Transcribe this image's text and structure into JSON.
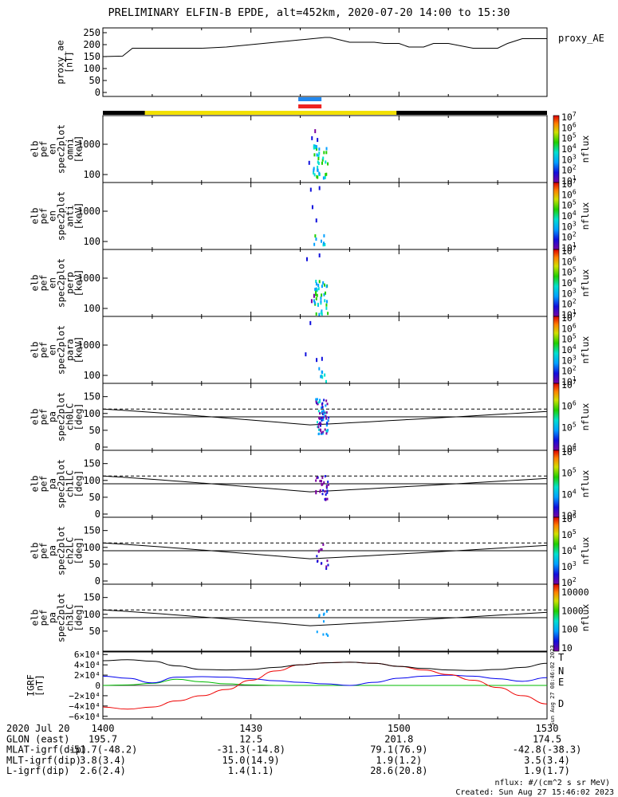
{
  "title": "PRELIMINARY ELFIN-B EPDE, alt=452km, 2020-07-20 14:00 to 15:30",
  "chart_data": {
    "type": "spectrogram_stack",
    "time_range": [
      "2020-07-20 14:00",
      "2020-07-20 15:30"
    ],
    "x_ticks": [
      "1400",
      "1430",
      "1500",
      "1530"
    ],
    "ae_panel": {
      "ylabel": [
        "proxy_ae",
        "[nT]"
      ],
      "legend": "proxy_AE",
      "ylim": [
        0,
        260
      ],
      "yticks": [
        "250",
        "200",
        "150",
        "100",
        "50",
        "0"
      ],
      "x_min": [
        0,
        4,
        6,
        10,
        20,
        25,
        30,
        35,
        40,
        45,
        46,
        50,
        52,
        55,
        57,
        60,
        62,
        65,
        67,
        70,
        75,
        80,
        82,
        85,
        87,
        90
      ],
      "values": [
        150,
        152,
        185,
        185,
        185,
        190,
        200,
        210,
        220,
        230,
        230,
        210,
        210,
        210,
        205,
        205,
        190,
        190,
        205,
        205,
        185,
        185,
        205,
        225,
        225,
        225
      ]
    },
    "orbit_bar": {
      "segments": [
        "black",
        "yellow",
        "black"
      ],
      "yellow_span_min": [
        8.5,
        59.5
      ]
    },
    "markers": [
      {
        "color": "#2288ee",
        "span_min": [
          39.6,
          44.3
        ]
      },
      {
        "color": "#ee2222",
        "span_min": [
          39.6,
          44.3
        ]
      }
    ],
    "energy_panels": [
      {
        "ylabel": [
          "elb",
          "pef",
          "en",
          "spec2plot",
          "omni",
          "[keV]"
        ],
        "yticks": [
          "1000",
          "100"
        ],
        "cb_top": 7,
        "cb_bottom": 1,
        "cb_unit": "nflux"
      },
      {
        "ylabel": [
          "elb",
          "pef",
          "en",
          "spec2plot",
          "anti",
          "[keV]"
        ],
        "yticks": [
          "1000",
          "100"
        ],
        "cb_top": 7,
        "cb_bottom": 1,
        "cb_unit": "nflux"
      },
      {
        "ylabel": [
          "elb",
          "pef",
          "en",
          "spec2plot",
          "perp",
          "[keV]"
        ],
        "yticks": [
          "1000",
          "100"
        ],
        "cb_top": 7,
        "cb_bottom": 1,
        "cb_unit": "nflux"
      },
      {
        "ylabel": [
          "elb",
          "pef",
          "en",
          "spec2plot",
          "para",
          "[keV]"
        ],
        "yticks": [
          "1000",
          "100"
        ],
        "cb_top": 7,
        "cb_bottom": 1,
        "cb_unit": "nflux"
      }
    ],
    "pa_panels": [
      {
        "ylabel": [
          "elb",
          "pef",
          "pa",
          "spec2plot",
          "ch0LC",
          "[deg]"
        ],
        "yticks": [
          "150",
          "100",
          "50",
          "0"
        ],
        "cb_top": 7,
        "cb_bottom": 4,
        "cb_unit": "nflux"
      },
      {
        "ylabel": [
          "elb",
          "pef",
          "pa",
          "spec2plot",
          "ch1LC",
          "[deg]"
        ],
        "yticks": [
          "150",
          "100",
          "50",
          "0"
        ],
        "cb_top": 6,
        "cb_bottom": 3,
        "cb_unit": "nflux"
      },
      {
        "ylabel": [
          "elb",
          "pef",
          "pa",
          "spec2plot",
          "ch2LC",
          "[deg]"
        ],
        "yticks": [
          "150",
          "100",
          "50",
          "0"
        ],
        "cb_top": 6,
        "cb_bottom": 2,
        "cb_unit": "nflux"
      },
      {
        "ylabel": [
          "elb",
          "pef",
          "pa",
          "spec2plot",
          "ch3LC",
          "[deg]"
        ],
        "yticks": [
          "150",
          "100",
          "50"
        ],
        "cb_labels": [
          "10000",
          "1000",
          "100",
          "10"
        ],
        "cb_unit": "nflux"
      }
    ],
    "igrf_panel": {
      "ylabel": [
        "IGRF",
        "[nT]"
      ],
      "yticks": [
        "6×10⁴",
        "4×10⁴",
        "2×10⁴",
        "0",
        "−2×10⁴",
        "−4×10⁴",
        "−6×10⁴"
      ],
      "ylim": [
        -65000,
        65000
      ],
      "legend": [
        {
          "name": "T",
          "color": "#000000"
        },
        {
          "name": "N",
          "color": "#0000ee"
        },
        {
          "name": "E",
          "color": "#00bb00"
        },
        {
          "name": "D",
          "color": "#ee0000"
        }
      ],
      "x_min": [
        0,
        5,
        10,
        15,
        20,
        25,
        30,
        35,
        40,
        45,
        50,
        55,
        60,
        65,
        70,
        75,
        80,
        85,
        90
      ],
      "T": [
        48000,
        50000,
        47000,
        38000,
        31000,
        30000,
        31000,
        35000,
        40000,
        44000,
        45000,
        43000,
        37000,
        33000,
        30000,
        29000,
        31000,
        35000,
        43000
      ],
      "N": [
        18000,
        14000,
        5000,
        16000,
        17000,
        16000,
        13000,
        9000,
        6000,
        3000,
        0,
        6000,
        14000,
        18000,
        20000,
        18000,
        13000,
        8000,
        15000
      ],
      "E": [
        0,
        1000,
        4000,
        12000,
        7000,
        3000,
        1000,
        0,
        0,
        0,
        0,
        0,
        0,
        0,
        0,
        0,
        0,
        0,
        0
      ],
      "D": [
        -42000,
        -46000,
        -42000,
        -30000,
        -20000,
        -8000,
        10000,
        28000,
        40000,
        44000,
        45000,
        43000,
        37000,
        30000,
        21000,
        10000,
        -4000,
        -20000,
        -36000
      ]
    },
    "side_stamp": "Sun Aug 27 08:46:02 2023"
  },
  "footer": {
    "rows": [
      {
        "label": "2020 Jul 20",
        "values": [
          "1400",
          "1430",
          "1500",
          "1530"
        ]
      },
      {
        "label": "GLON (east)",
        "values": [
          "195.7",
          "12.5",
          "201.8",
          "174.5"
        ]
      },
      {
        "label": "MLAT-igrf(dip)",
        "values": [
          "-51.7(-48.2)",
          "-31.3(-14.8)",
          "79.1(76.9)",
          "-42.8(-38.3)"
        ]
      },
      {
        "label": "MLT-igrf(dip)",
        "values": [
          "3.8(3.4)",
          "15.0(14.9)",
          "1.9(1.2)",
          "3.5(3.4)"
        ]
      },
      {
        "label": "L-igrf(dip)",
        "values": [
          "2.6(2.4)",
          "1.4(1.1)",
          "28.6(20.8)",
          "1.9(1.7)"
        ]
      }
    ],
    "units_note": "nflux: #/(cm^2 s sr MeV)",
    "created": "Created: Sun Aug 27 15:46:02 2023"
  }
}
